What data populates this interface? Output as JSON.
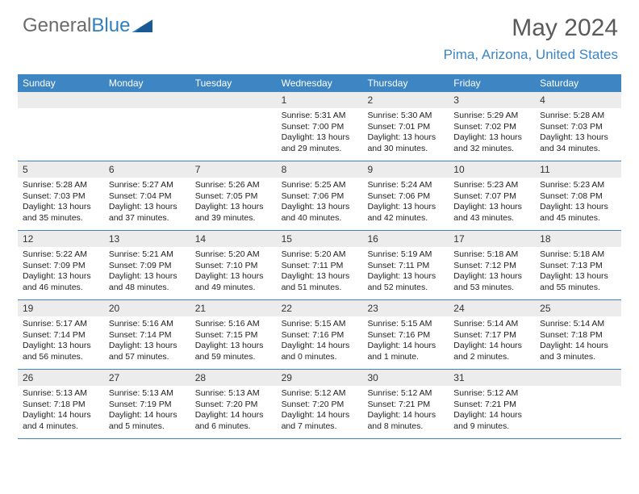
{
  "brand": {
    "part1": "General",
    "part2": "Blue"
  },
  "title": "May 2024",
  "location": "Pima, Arizona, United States",
  "colors": {
    "header_bg": "#3d85c3",
    "location_color": "#3d85c3",
    "title_color": "#5a5a5a",
    "daynum_bg": "#ececec",
    "rule_color": "#3d85c3"
  },
  "weekdays": [
    "Sunday",
    "Monday",
    "Tuesday",
    "Wednesday",
    "Thursday",
    "Friday",
    "Saturday"
  ],
  "weeks": [
    [
      {
        "n": "",
        "sr": "",
        "ss": "",
        "dl": ""
      },
      {
        "n": "",
        "sr": "",
        "ss": "",
        "dl": ""
      },
      {
        "n": "",
        "sr": "",
        "ss": "",
        "dl": ""
      },
      {
        "n": "1",
        "sr": "Sunrise: 5:31 AM",
        "ss": "Sunset: 7:00 PM",
        "dl": "Daylight: 13 hours and 29 minutes."
      },
      {
        "n": "2",
        "sr": "Sunrise: 5:30 AM",
        "ss": "Sunset: 7:01 PM",
        "dl": "Daylight: 13 hours and 30 minutes."
      },
      {
        "n": "3",
        "sr": "Sunrise: 5:29 AM",
        "ss": "Sunset: 7:02 PM",
        "dl": "Daylight: 13 hours and 32 minutes."
      },
      {
        "n": "4",
        "sr": "Sunrise: 5:28 AM",
        "ss": "Sunset: 7:03 PM",
        "dl": "Daylight: 13 hours and 34 minutes."
      }
    ],
    [
      {
        "n": "5",
        "sr": "Sunrise: 5:28 AM",
        "ss": "Sunset: 7:03 PM",
        "dl": "Daylight: 13 hours and 35 minutes."
      },
      {
        "n": "6",
        "sr": "Sunrise: 5:27 AM",
        "ss": "Sunset: 7:04 PM",
        "dl": "Daylight: 13 hours and 37 minutes."
      },
      {
        "n": "7",
        "sr": "Sunrise: 5:26 AM",
        "ss": "Sunset: 7:05 PM",
        "dl": "Daylight: 13 hours and 39 minutes."
      },
      {
        "n": "8",
        "sr": "Sunrise: 5:25 AM",
        "ss": "Sunset: 7:06 PM",
        "dl": "Daylight: 13 hours and 40 minutes."
      },
      {
        "n": "9",
        "sr": "Sunrise: 5:24 AM",
        "ss": "Sunset: 7:06 PM",
        "dl": "Daylight: 13 hours and 42 minutes."
      },
      {
        "n": "10",
        "sr": "Sunrise: 5:23 AM",
        "ss": "Sunset: 7:07 PM",
        "dl": "Daylight: 13 hours and 43 minutes."
      },
      {
        "n": "11",
        "sr": "Sunrise: 5:23 AM",
        "ss": "Sunset: 7:08 PM",
        "dl": "Daylight: 13 hours and 45 minutes."
      }
    ],
    [
      {
        "n": "12",
        "sr": "Sunrise: 5:22 AM",
        "ss": "Sunset: 7:09 PM",
        "dl": "Daylight: 13 hours and 46 minutes."
      },
      {
        "n": "13",
        "sr": "Sunrise: 5:21 AM",
        "ss": "Sunset: 7:09 PM",
        "dl": "Daylight: 13 hours and 48 minutes."
      },
      {
        "n": "14",
        "sr": "Sunrise: 5:20 AM",
        "ss": "Sunset: 7:10 PM",
        "dl": "Daylight: 13 hours and 49 minutes."
      },
      {
        "n": "15",
        "sr": "Sunrise: 5:20 AM",
        "ss": "Sunset: 7:11 PM",
        "dl": "Daylight: 13 hours and 51 minutes."
      },
      {
        "n": "16",
        "sr": "Sunrise: 5:19 AM",
        "ss": "Sunset: 7:11 PM",
        "dl": "Daylight: 13 hours and 52 minutes."
      },
      {
        "n": "17",
        "sr": "Sunrise: 5:18 AM",
        "ss": "Sunset: 7:12 PM",
        "dl": "Daylight: 13 hours and 53 minutes."
      },
      {
        "n": "18",
        "sr": "Sunrise: 5:18 AM",
        "ss": "Sunset: 7:13 PM",
        "dl": "Daylight: 13 hours and 55 minutes."
      }
    ],
    [
      {
        "n": "19",
        "sr": "Sunrise: 5:17 AM",
        "ss": "Sunset: 7:14 PM",
        "dl": "Daylight: 13 hours and 56 minutes."
      },
      {
        "n": "20",
        "sr": "Sunrise: 5:16 AM",
        "ss": "Sunset: 7:14 PM",
        "dl": "Daylight: 13 hours and 57 minutes."
      },
      {
        "n": "21",
        "sr": "Sunrise: 5:16 AM",
        "ss": "Sunset: 7:15 PM",
        "dl": "Daylight: 13 hours and 59 minutes."
      },
      {
        "n": "22",
        "sr": "Sunrise: 5:15 AM",
        "ss": "Sunset: 7:16 PM",
        "dl": "Daylight: 14 hours and 0 minutes."
      },
      {
        "n": "23",
        "sr": "Sunrise: 5:15 AM",
        "ss": "Sunset: 7:16 PM",
        "dl": "Daylight: 14 hours and 1 minute."
      },
      {
        "n": "24",
        "sr": "Sunrise: 5:14 AM",
        "ss": "Sunset: 7:17 PM",
        "dl": "Daylight: 14 hours and 2 minutes."
      },
      {
        "n": "25",
        "sr": "Sunrise: 5:14 AM",
        "ss": "Sunset: 7:18 PM",
        "dl": "Daylight: 14 hours and 3 minutes."
      }
    ],
    [
      {
        "n": "26",
        "sr": "Sunrise: 5:13 AM",
        "ss": "Sunset: 7:18 PM",
        "dl": "Daylight: 14 hours and 4 minutes."
      },
      {
        "n": "27",
        "sr": "Sunrise: 5:13 AM",
        "ss": "Sunset: 7:19 PM",
        "dl": "Daylight: 14 hours and 5 minutes."
      },
      {
        "n": "28",
        "sr": "Sunrise: 5:13 AM",
        "ss": "Sunset: 7:20 PM",
        "dl": "Daylight: 14 hours and 6 minutes."
      },
      {
        "n": "29",
        "sr": "Sunrise: 5:12 AM",
        "ss": "Sunset: 7:20 PM",
        "dl": "Daylight: 14 hours and 7 minutes."
      },
      {
        "n": "30",
        "sr": "Sunrise: 5:12 AM",
        "ss": "Sunset: 7:21 PM",
        "dl": "Daylight: 14 hours and 8 minutes."
      },
      {
        "n": "31",
        "sr": "Sunrise: 5:12 AM",
        "ss": "Sunset: 7:21 PM",
        "dl": "Daylight: 14 hours and 9 minutes."
      },
      {
        "n": "",
        "sr": "",
        "ss": "",
        "dl": ""
      }
    ]
  ]
}
